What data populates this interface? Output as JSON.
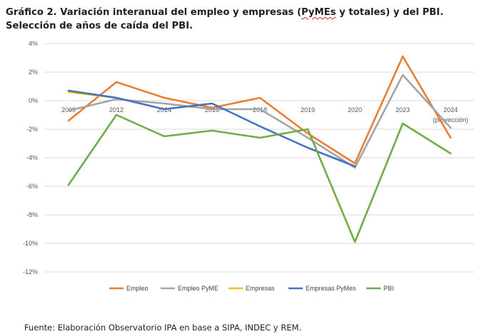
{
  "title": {
    "part1": "Gráfico 2. Variación interanual del empleo y empresas (",
    "part2": "PyMEs",
    "part3": " y totales) y del PBI. Selección de años de caída del PBI."
  },
  "source": "Fuente: Elaboración Observatorio IPA en base a SIPA, INDEC y REM.",
  "chart_data": {
    "type": "line",
    "categories": [
      "2009",
      "2012",
      "2014",
      "2016",
      "2018",
      "2019",
      "2020",
      "2023",
      "2024"
    ],
    "category_sublabels": [
      "",
      "",
      "",
      "",
      "",
      "",
      "",
      "",
      "(proyección)"
    ],
    "y_ticks": [
      "4%",
      "2%",
      "0%",
      "-2%",
      "-4%",
      "-6%",
      "-8%",
      "-10%",
      "-12%"
    ],
    "ylim": [
      -12,
      4
    ],
    "grid": true,
    "legend_position": "bottom",
    "series": [
      {
        "name": "Empleo",
        "color": "#ED7D31",
        "values": [
          -1.4,
          1.3,
          0.2,
          -0.5,
          0.2,
          -2.3,
          -4.4,
          3.1,
          -2.6
        ]
      },
      {
        "name": "Empleo PyME",
        "color": "#A5A5A5",
        "values": [
          -0.7,
          0.1,
          -0.2,
          -0.6,
          -0.6,
          -2.6,
          -4.7,
          1.8,
          -1.9
        ]
      },
      {
        "name": "Empresas",
        "color": "#FFC000",
        "values": [
          0.6,
          0.2,
          null,
          null,
          null,
          null,
          null,
          null,
          null
        ]
      },
      {
        "name": "Empresas PyMes",
        "color": "#4472C4",
        "values": [
          0.7,
          0.2,
          -0.6,
          -0.2,
          -1.8,
          -3.3,
          -4.6,
          null,
          null
        ]
      },
      {
        "name": "PBI",
        "color": "#70AD47",
        "values": [
          -5.9,
          -1.0,
          -2.5,
          -2.1,
          -2.6,
          -2.0,
          -9.9,
          -1.6,
          -3.7
        ]
      }
    ]
  }
}
